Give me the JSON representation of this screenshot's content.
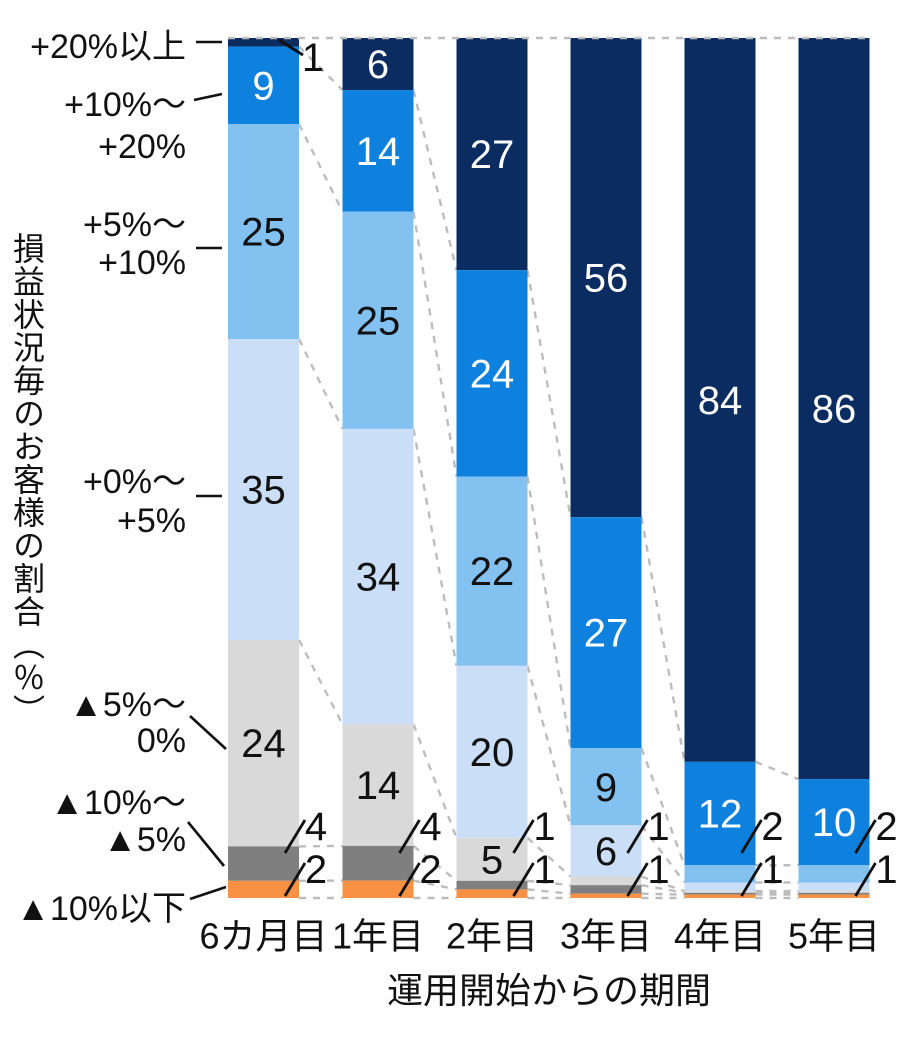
{
  "chart_data": {
    "type": "bar",
    "stacked": true,
    "orientation": "vertical",
    "title": "",
    "xlabel": "運用開始からの期間",
    "ylabel": "損益状況毎のお客様の割合（％）",
    "ylim": [
      0,
      100
    ],
    "grid": false,
    "legend_position": "left-axis-range-labels",
    "categories": [
      "6カ月目",
      "1年目",
      "2年目",
      "3年目",
      "4年目",
      "5年目"
    ],
    "series": [
      {
        "name": "+20%以上",
        "display_lines": [
          "+20%以上"
        ],
        "color": "#0a2c60",
        "label_color": "#ffffff",
        "values": [
          1,
          6,
          27,
          56,
          84,
          86
        ]
      },
      {
        "name": "+10%〜+20%",
        "display_lines": [
          "+10%〜",
          "+20%"
        ],
        "color": "#0e80dd",
        "label_color": "#ffffff",
        "values": [
          9,
          14,
          24,
          27,
          12,
          10
        ]
      },
      {
        "name": "+5%〜+10%",
        "display_lines": [
          "+5%〜",
          "+10%"
        ],
        "color": "#82c1f0",
        "label_color": "#111111",
        "values": [
          25,
          25,
          22,
          9,
          2,
          2
        ]
      },
      {
        "name": "+0%〜+5%",
        "display_lines": [
          "+0%〜",
          "+5%"
        ],
        "color": "#cadef8",
        "label_color": "#111111",
        "values": [
          35,
          34,
          20,
          6,
          1,
          1
        ]
      },
      {
        "name": "▲5%〜0%",
        "display_lines": [
          "▲5%〜",
          "0%"
        ],
        "color": "#d9d9d9",
        "label_color": "#111111",
        "values": [
          24,
          14,
          5,
          1,
          0.2,
          0.2
        ]
      },
      {
        "name": "▲10%〜▲5%",
        "display_lines": [
          "▲10%〜",
          "▲5%"
        ],
        "color": "#7f7f7f",
        "label_color": "#ffffff",
        "values": [
          4,
          4,
          1,
          1,
          0.2,
          0.2
        ]
      },
      {
        "name": "▲10%以下",
        "display_lines": [
          "▲10%以下"
        ],
        "color": "#f89143",
        "label_color": "#111111",
        "values": [
          2,
          2,
          1,
          0.5,
          0.4,
          0.4
        ]
      }
    ],
    "value_label_rule": "values >=5 printed inside segments; values 1-4 printed beside bars with leader lines; sub-1 slivers unlabeled",
    "connector_style": "gray dashed lines join segment boundaries of adjacent bars; dashed line along 100% top",
    "colors": {
      "dashed_connector": "#bdbdc0",
      "leader_line": "#111111",
      "text": "#111111"
    }
  }
}
